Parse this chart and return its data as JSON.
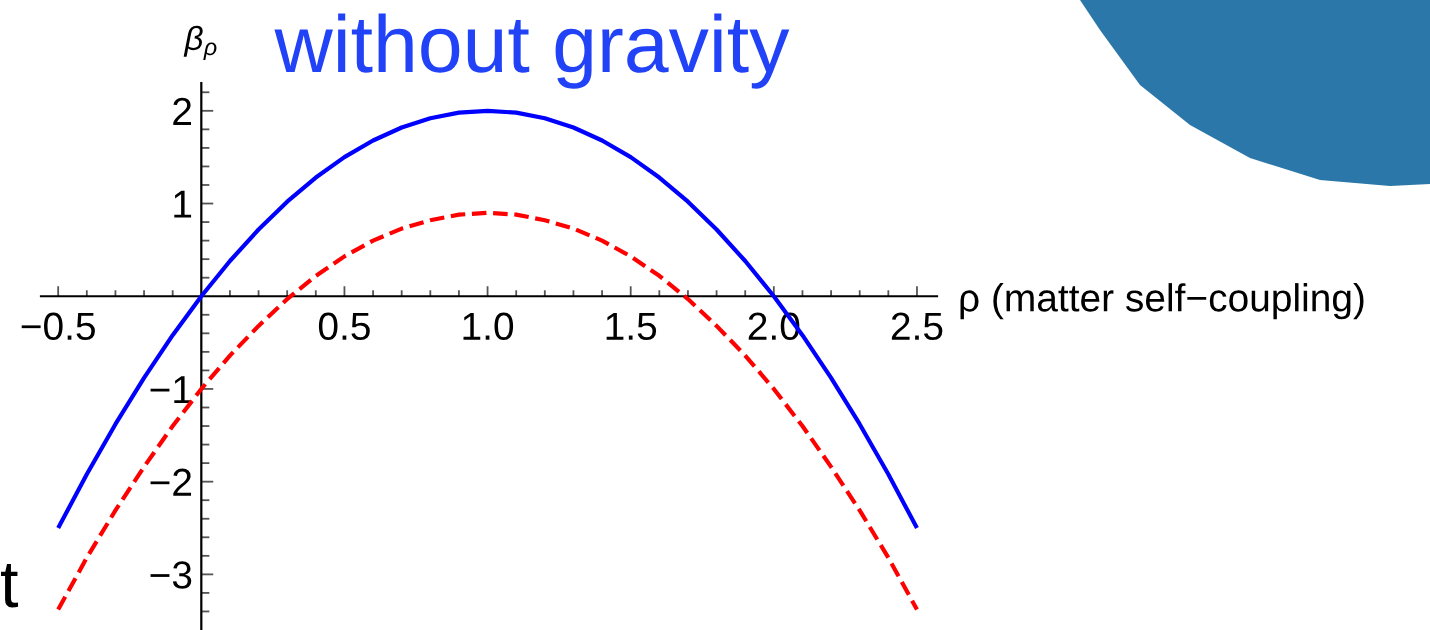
{
  "chart_data": {
    "type": "line",
    "title": "without gravity",
    "xlabel": "ρ (matter self−coupling)",
    "ylabel": "β$_{ρ}$",
    "annotations": [
      "t"
    ],
    "x": [
      -0.5,
      -0.4,
      -0.3,
      -0.2,
      -0.1,
      0,
      0.1,
      0.2,
      0.3,
      0.4,
      0.5,
      0.6,
      0.7,
      0.8,
      0.9,
      1.0,
      1.1,
      1.2,
      1.3,
      1.4,
      1.5,
      1.6,
      1.7,
      1.8,
      1.9,
      2.0,
      2.1,
      2.2,
      2.3,
      2.4,
      2.5
    ],
    "series": [
      {
        "color": "#0000ff",
        "line_style": "solid",
        "values": [
          -2.5,
          -1.92,
          -1.38,
          -0.88,
          -0.42,
          0,
          0.38,
          0.72,
          1.02,
          1.28,
          1.5,
          1.68,
          1.82,
          1.92,
          1.98,
          2,
          1.98,
          1.92,
          1.82,
          1.68,
          1.5,
          1.28,
          1.02,
          0.72,
          0.38,
          0,
          -0.42,
          -0.88,
          -1.38,
          -1.92,
          -2.5
        ]
      },
      {
        "color": "#ff0000",
        "line_style": "dashed",
        "values": [
          -3.38,
          -2.82,
          -2.31,
          -1.84,
          -1.4,
          -1,
          -0.64,
          -0.32,
          -0.03,
          0.22,
          0.43,
          0.6,
          0.73,
          0.82,
          0.88,
          0.9,
          0.88,
          0.82,
          0.73,
          0.6,
          0.43,
          0.22,
          -0.03,
          -0.32,
          -0.64,
          -1,
          -1.4,
          -1.84,
          -2.31,
          -2.82,
          -3.38
        ]
      }
    ],
    "xlim": [
      -0.56,
      2.57
    ],
    "ylim": [
      -3.6,
      2.3
    ],
    "xticks": [
      {
        "value": -0.5,
        "label": "−0.5"
      },
      {
        "value": -0.4,
        "label": null
      },
      {
        "value": -0.3,
        "label": null
      },
      {
        "value": -0.2,
        "label": null
      },
      {
        "value": -0.1,
        "label": null
      },
      {
        "value": 0.1,
        "label": null
      },
      {
        "value": 0.2,
        "label": null
      },
      {
        "value": 0.3,
        "label": null
      },
      {
        "value": 0.4,
        "label": null
      },
      0.5,
      {
        "value": 0.6,
        "label": null
      },
      {
        "value": 0.7,
        "label": null
      },
      {
        "value": 0.8,
        "label": null
      },
      {
        "value": 0.9,
        "label": null
      },
      {
        "value": 1,
        "label": "1.0"
      },
      {
        "value": 1.1,
        "label": null
      },
      {
        "value": 1.2,
        "label": null
      },
      {
        "value": 1.3,
        "label": null
      },
      {
        "value": 1.4,
        "label": null
      },
      1.5,
      {
        "value": 1.6,
        "label": null
      },
      {
        "value": 1.7,
        "label": null
      },
      {
        "value": 1.8,
        "label": null
      },
      {
        "value": 1.9,
        "label": null
      },
      {
        "value": 2,
        "label": "2.0"
      },
      {
        "value": 2.1,
        "label": null
      },
      {
        "value": 2.2,
        "label": null
      },
      {
        "value": 2.3,
        "label": null
      },
      {
        "value": 2.4,
        "label": null
      },
      2.5
    ],
    "yticks": [
      {
        "value": -3.4,
        "label": null
      },
      {
        "value": -3.2,
        "label": null
      },
      {
        "value": -3,
        "label": "−3"
      },
      {
        "value": -2.8,
        "label": null
      },
      {
        "value": -2.6,
        "label": null
      },
      {
        "value": -2.4,
        "label": null
      },
      {
        "value": -2.2,
        "label": null
      },
      {
        "value": -2,
        "label": "−2"
      },
      {
        "value": -1.8,
        "label": null
      },
      {
        "value": -1.6,
        "label": null
      },
      {
        "value": -1.4,
        "label": null
      },
      {
        "value": -1.2,
        "label": null
      },
      {
        "value": -1,
        "label": "−1"
      },
      {
        "value": -0.8,
        "label": null
      },
      {
        "value": -0.6,
        "label": null
      },
      {
        "value": -0.4,
        "label": null
      },
      {
        "value": -0.2,
        "label": null
      },
      {
        "value": 0.2,
        "label": null
      },
      {
        "value": 0.4,
        "label": null
      },
      {
        "value": 0.6,
        "label": null
      },
      {
        "value": 0.8,
        "label": null
      },
      1,
      {
        "value": 1.2,
        "label": null
      },
      {
        "value": 1.4,
        "label": null
      },
      {
        "value": 1.6,
        "label": null
      },
      {
        "value": 1.8,
        "label": null
      },
      2,
      {
        "value": 2.2,
        "label": null
      }
    ]
  }
}
